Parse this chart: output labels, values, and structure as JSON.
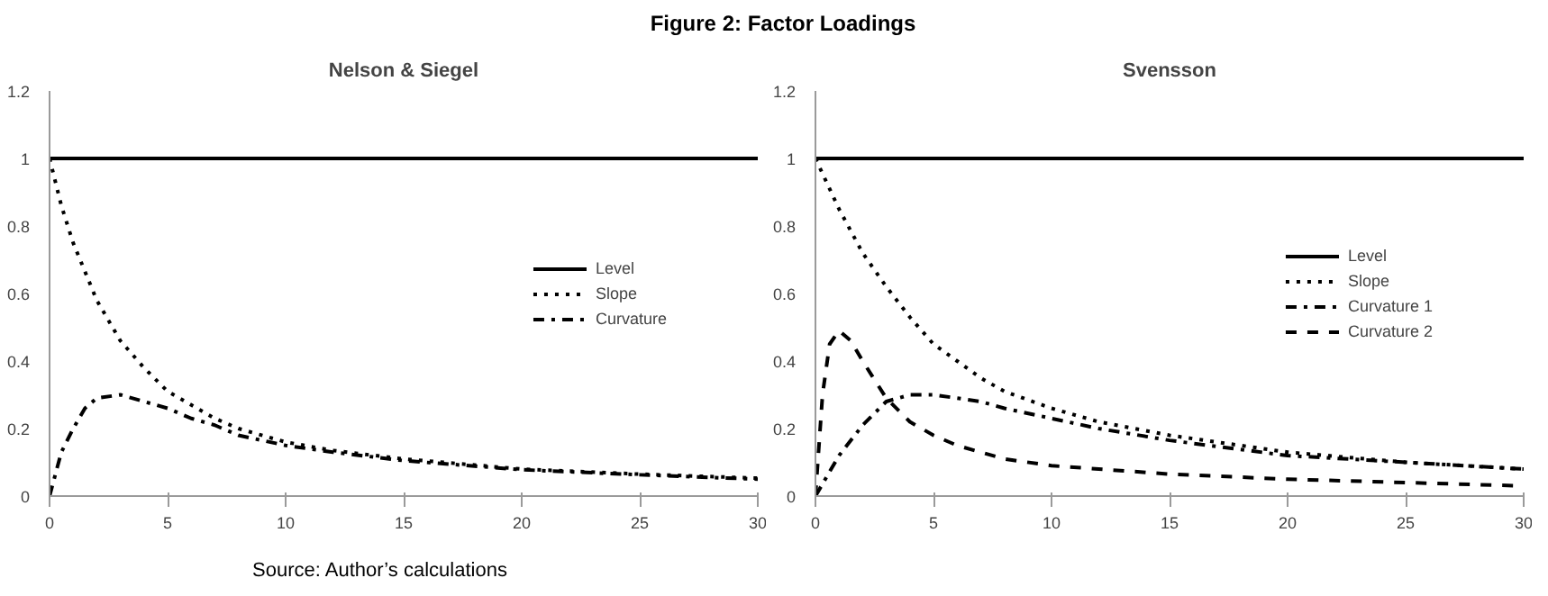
{
  "chart_data": [
    {
      "type": "line",
      "title": "Nelson & Siegel",
      "annotations": [
        "Figure 2: Factor Loadings",
        "Source: Author’s calculations"
      ],
      "xlim": [
        0,
        30
      ],
      "ylim": [
        0,
        1.2
      ],
      "xticks": [
        0,
        5,
        10,
        15,
        20,
        25,
        30
      ],
      "yticks": [
        0,
        0.2,
        0.4,
        0.6,
        0.8,
        1,
        1.2
      ],
      "grid": false,
      "legend": "right",
      "marker": "none",
      "series": [
        {
          "name": "Level",
          "color": "#000000",
          "line_style": "solid",
          "x": [
            0,
            30
          ],
          "values": [
            1,
            1
          ]
        },
        {
          "name": "Slope",
          "color": "#000000",
          "line_style": "dotted",
          "x": [
            0,
            0.5,
            1,
            2,
            3,
            4,
            5,
            6,
            7,
            8,
            10,
            12,
            15,
            20,
            25,
            30
          ],
          "values": [
            1,
            0.86,
            0.75,
            0.58,
            0.46,
            0.38,
            0.31,
            0.27,
            0.23,
            0.2,
            0.16,
            0.135,
            0.11,
            0.08,
            0.065,
            0.053
          ]
        },
        {
          "name": "Curvature",
          "color": "#000000",
          "line_style": "dashdot",
          "x": [
            0,
            0.5,
            1,
            1.5,
            2,
            3,
            4,
            5,
            6,
            7,
            8,
            10,
            12,
            15,
            20,
            25,
            30
          ],
          "values": [
            0,
            0.13,
            0.2,
            0.26,
            0.29,
            0.3,
            0.28,
            0.26,
            0.23,
            0.21,
            0.18,
            0.15,
            0.13,
            0.105,
            0.078,
            0.063,
            0.05
          ]
        }
      ]
    },
    {
      "type": "line",
      "title": "Svensson",
      "xlim": [
        0,
        30
      ],
      "ylim": [
        0,
        1.2
      ],
      "xticks": [
        0,
        5,
        10,
        15,
        20,
        25,
        30
      ],
      "yticks": [
        0,
        0.2,
        0.4,
        0.6,
        0.8,
        1,
        1.2
      ],
      "grid": false,
      "legend": "right",
      "marker": "none",
      "series": [
        {
          "name": "Level",
          "color": "#000000",
          "line_style": "solid",
          "x": [
            0,
            30
          ],
          "values": [
            1,
            1
          ]
        },
        {
          "name": "Slope",
          "color": "#000000",
          "line_style": "dotted",
          "x": [
            0,
            1,
            2,
            3,
            4,
            5,
            6,
            7,
            8,
            10,
            12,
            15,
            20,
            25,
            30
          ],
          "values": [
            1,
            0.85,
            0.72,
            0.62,
            0.53,
            0.45,
            0.4,
            0.35,
            0.31,
            0.26,
            0.22,
            0.18,
            0.13,
            0.1,
            0.08
          ]
        },
        {
          "name": "Curvature 1",
          "color": "#000000",
          "line_style": "dashdot",
          "x": [
            0,
            1,
            2,
            3,
            4,
            5,
            6,
            7,
            8,
            10,
            12,
            15,
            20,
            25,
            30
          ],
          "values": [
            0,
            0.12,
            0.21,
            0.28,
            0.3,
            0.3,
            0.29,
            0.28,
            0.26,
            0.23,
            0.2,
            0.165,
            0.12,
            0.1,
            0.08
          ]
        },
        {
          "name": "Curvature 2",
          "color": "#000000",
          "line_style": "dashed",
          "x": [
            0,
            0.3,
            0.6,
            1,
            1.5,
            2,
            3,
            4,
            5,
            6,
            8,
            10,
            12,
            15,
            20,
            25,
            30
          ],
          "values": [
            0,
            0.3,
            0.45,
            0.49,
            0.46,
            0.4,
            0.29,
            0.22,
            0.18,
            0.15,
            0.11,
            0.09,
            0.08,
            0.065,
            0.05,
            0.04,
            0.03
          ]
        }
      ]
    }
  ]
}
